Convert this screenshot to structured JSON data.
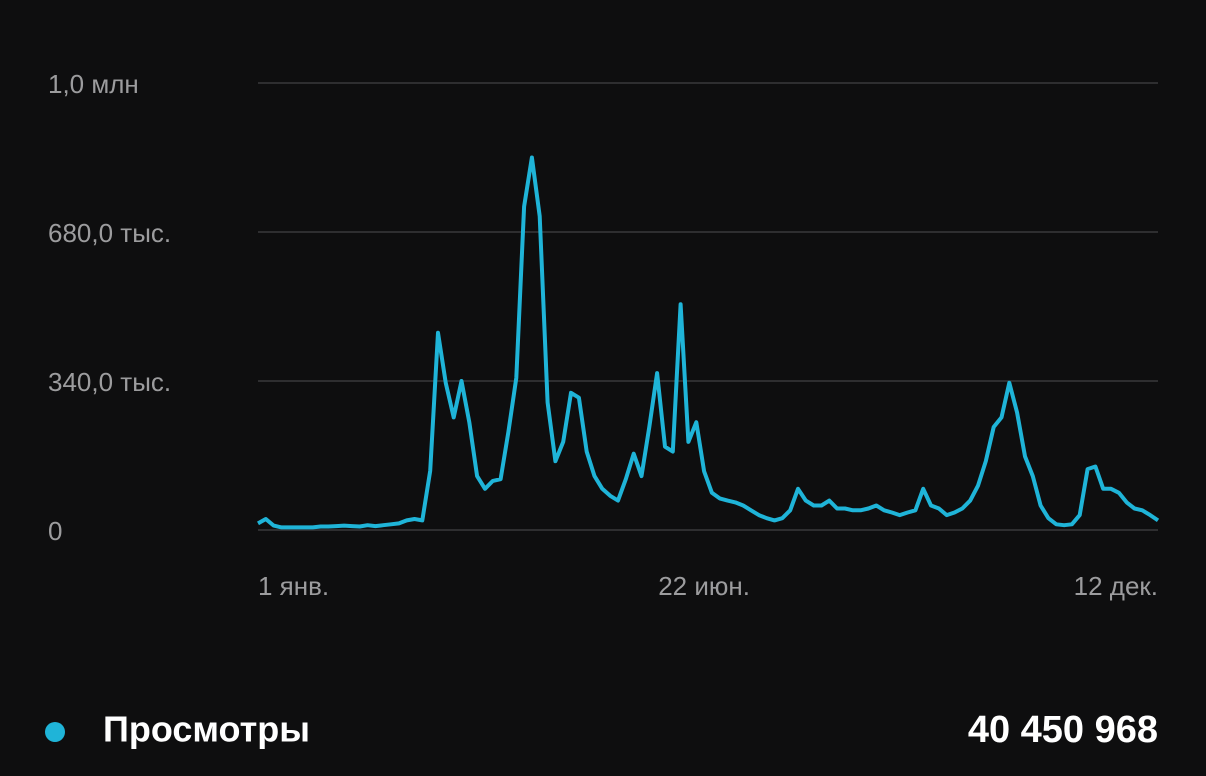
{
  "chart_data": {
    "type": "line",
    "categories": [
      "1 янв.",
      null,
      null,
      null,
      null,
      null,
      null,
      null,
      null,
      null,
      null,
      null,
      null,
      null,
      null,
      null,
      null,
      null,
      null,
      null,
      null,
      null,
      null,
      null,
      null,
      null,
      null,
      null,
      null,
      null,
      null,
      null,
      null,
      null,
      null,
      null,
      null,
      null,
      null,
      null,
      null,
      null,
      null,
      null,
      null,
      null,
      null,
      null,
      null,
      null,
      null,
      null,
      null,
      null,
      null,
      null,
      null,
      "22 июн.",
      null,
      null,
      null,
      null,
      null,
      null,
      null,
      null,
      null,
      null,
      null,
      null,
      null,
      null,
      null,
      null,
      null,
      null,
      null,
      null,
      null,
      null,
      null,
      null,
      null,
      null,
      null,
      null,
      null,
      null,
      null,
      null,
      null,
      null,
      null,
      null,
      null,
      null,
      null,
      null,
      null,
      null,
      null,
      null,
      null,
      null,
      null,
      null,
      null,
      null,
      null,
      null,
      null,
      null,
      null,
      null,
      null,
      "12 дек."
    ],
    "series": [
      {
        "name": "Просмотры",
        "color": "#1fb4d8",
        "total": "40 450 968",
        "values": [
          15000,
          25000,
          10000,
          6000,
          6000,
          6000,
          6000,
          6000,
          8000,
          8000,
          9000,
          10000,
          9000,
          8000,
          11000,
          9000,
          11000,
          13000,
          15000,
          22000,
          25000,
          22000,
          135000,
          450000,
          335000,
          257000,
          340000,
          246000,
          123000,
          94000,
          112000,
          116000,
          224000,
          347000,
          738000,
          850000,
          716000,
          291000,
          157000,
          201000,
          313000,
          302000,
          179000,
          123000,
          94000,
          78000,
          67000,
          116000,
          174000,
          123000,
          235000,
          358000,
          190000,
          179000,
          515000,
          201000,
          246000,
          134000,
          85000,
          72000,
          67000,
          63000,
          56000,
          45000,
          34000,
          27000,
          22000,
          27000,
          45000,
          94000,
          67000,
          56000,
          56000,
          67000,
          49000,
          49000,
          45000,
          45000,
          49000,
          56000,
          45000,
          40000,
          34000,
          40000,
          45000,
          94000,
          56000,
          49000,
          34000,
          40000,
          49000,
          67000,
          101000,
          157000,
          235000,
          257000,
          336000,
          268000,
          168000,
          123000,
          56000,
          27000,
          13000,
          11000,
          13000,
          34000,
          139000,
          145000,
          94000,
          94000,
          85000,
          63000,
          49000,
          45000,
          34000,
          22000
        ]
      }
    ],
    "ylim": [
      0,
      1020000
    ],
    "yticks": [
      0,
      {
        "value": 340000,
        "label": "340,0 тыс."
      },
      {
        "value": 680000,
        "label": "680,0 тыс."
      },
      {
        "value": 1020000,
        "label": "1,0 млн"
      }
    ],
    "grid": true
  }
}
